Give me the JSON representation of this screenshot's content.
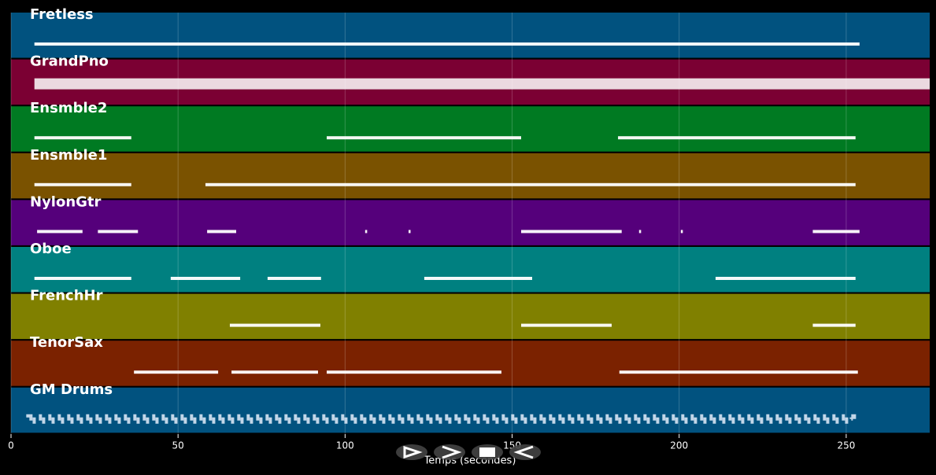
{
  "chart_data": {
    "type": "timeline",
    "xlabel": "Temps (secondes)",
    "xlim": [
      0,
      275
    ],
    "xticks": [
      0,
      50,
      100,
      150,
      200,
      250
    ],
    "grid": true,
    "tracks": [
      {
        "name": "Fretless",
        "color": "#01527f",
        "spans": [
          [
            7,
            254
          ]
        ]
      },
      {
        "name": "GrandPno",
        "color": "#7b0033",
        "spans": [
          [
            7,
            275
          ]
        ]
      },
      {
        "name": "Ensmble2",
        "color": "#007a22",
        "spans": [
          [
            7,
            36
          ],
          [
            94.5,
            152.7
          ],
          [
            181.7,
            252.8
          ]
        ]
      },
      {
        "name": "Ensmble1",
        "color": "#7a5200",
        "spans": [
          [
            7,
            36
          ],
          [
            58.2,
            252.8
          ]
        ]
      },
      {
        "name": "NylonGtr",
        "color": "#55007b",
        "spans": [
          [
            7.8,
            21.4
          ],
          [
            26,
            38
          ],
          [
            58.7,
            67.4
          ],
          [
            106,
            106.6
          ],
          [
            119,
            119.6
          ],
          [
            152.7,
            182.8
          ],
          [
            188,
            188.6
          ],
          [
            200.5,
            201.1
          ],
          [
            240,
            254
          ]
        ]
      },
      {
        "name": "Oboe",
        "color": "#008080",
        "spans": [
          [
            7,
            36
          ],
          [
            47.8,
            68.6
          ],
          [
            76.8,
            92.8
          ],
          [
            123.7,
            156
          ],
          [
            210.9,
            252.8
          ]
        ]
      },
      {
        "name": "FrenchHr",
        "color": "#808000",
        "spans": [
          [
            65.5,
            92.6
          ],
          [
            152.7,
            179.8
          ],
          [
            240,
            252.8
          ]
        ]
      },
      {
        "name": "TenorSax",
        "color": "#7b2200",
        "spans": [
          [
            36.8,
            62
          ],
          [
            66,
            91.9
          ],
          [
            94.5,
            146.8
          ],
          [
            182.1,
            253.5
          ]
        ]
      },
      {
        "name": "GM Drums",
        "color": "#01527f",
        "spans": [
          [
            5.5,
            252
          ]
        ]
      }
    ]
  }
}
